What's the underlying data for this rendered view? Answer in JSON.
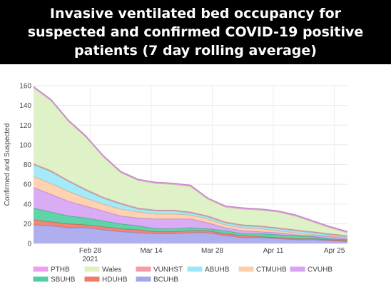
{
  "title": "Invasive ventilated bed occupancy for suspected and confirmed COVID-19 positive patients (7 day rolling average)",
  "chart_data": {
    "type": "area",
    "ylabel": "Confirmed and Suspected",
    "xlabel": "",
    "ylim": [
      0,
      160
    ],
    "y_ticks": [
      0,
      20,
      40,
      60,
      80,
      100,
      120,
      140,
      160
    ],
    "grid": true,
    "stacked": true,
    "legend_position": "bottom",
    "x": [
      "2021-02-15",
      "2021-02-19",
      "2021-02-23",
      "2021-02-27",
      "2021-03-03",
      "2021-03-07",
      "2021-03-11",
      "2021-03-15",
      "2021-03-19",
      "2021-03-23",
      "2021-03-27",
      "2021-03-31",
      "2021-04-04",
      "2021-04-08",
      "2021-04-12",
      "2021-04-16",
      "2021-04-20",
      "2021-04-24",
      "2021-04-28"
    ],
    "x_ticks": [
      {
        "date": "2021-02-28",
        "label": "Feb 28",
        "sublabel": "2021"
      },
      {
        "date": "2021-03-14",
        "label": "Mar 14",
        "sublabel": ""
      },
      {
        "date": "2021-03-28",
        "label": "Mar 28",
        "sublabel": ""
      },
      {
        "date": "2021-04-11",
        "label": "Apr 11",
        "sublabel": ""
      },
      {
        "date": "2021-04-25",
        "label": "Apr 25",
        "sublabel": ""
      }
    ],
    "series_cumulative": [
      {
        "name": "BCUHB",
        "color": "#a6a6ee",
        "values": [
          19,
          18,
          16,
          16,
          14,
          12,
          11,
          10,
          10,
          11,
          11,
          8,
          6,
          6,
          5,
          4,
          4,
          3,
          2
        ]
      },
      {
        "name": "HDUHB",
        "color": "#f07a6a",
        "values": [
          24,
          22,
          20,
          19,
          17,
          15,
          14,
          12,
          12,
          13,
          13,
          10,
          8,
          7,
          6,
          5,
          5,
          4,
          3
        ]
      },
      {
        "name": "SBUHB",
        "color": "#4fcfa0",
        "values": [
          36,
          32,
          28,
          26,
          23,
          20,
          18,
          15,
          15,
          16,
          15,
          13,
          10,
          10,
          9,
          8,
          7,
          5,
          4
        ]
      },
      {
        "name": "CVUHB",
        "color": "#d7a3f5",
        "values": [
          57,
          50,
          43,
          38,
          33,
          28,
          26,
          25,
          25,
          25,
          21,
          16,
          13,
          12,
          11,
          9,
          8,
          7,
          5
        ]
      },
      {
        "name": "CTMUHB",
        "color": "#ffcda8",
        "values": [
          68,
          61,
          53,
          46,
          40,
          35,
          32,
          30,
          30,
          29,
          25,
          19,
          16,
          15,
          13,
          11,
          9,
          8,
          6
        ]
      },
      {
        "name": "ABUHB",
        "color": "#9ae8f7",
        "values": [
          80,
          73,
          63,
          54,
          46,
          40,
          35,
          33,
          33,
          31,
          27,
          21,
          18,
          17,
          15,
          13,
          11,
          9,
          7
        ]
      },
      {
        "name": "VUNHST",
        "color": "#f79aa8",
        "values": [
          81,
          74,
          64,
          55,
          47,
          41,
          36,
          34,
          34,
          32,
          28,
          22,
          19,
          18,
          16,
          14,
          12,
          10,
          8
        ]
      },
      {
        "name": "Wales",
        "color": "#dcf0c0",
        "values": [
          158,
          145,
          124,
          108,
          88,
          72,
          64,
          61,
          60,
          58,
          45,
          37,
          35,
          34,
          32,
          28,
          22,
          16,
          11
        ]
      },
      {
        "name": "PTHB",
        "color": "#ef9df0",
        "values": [
          159,
          146,
          125,
          109,
          89,
          73,
          65,
          62,
          61,
          59,
          46,
          38,
          36,
          35,
          33,
          29,
          23,
          17,
          12
        ]
      }
    ],
    "legend_order": [
      "PTHB",
      "Wales",
      "VUNHST",
      "ABUHB",
      "CTMUHB",
      "CVUHB",
      "SBUHB",
      "HDUHB",
      "BCUHB"
    ]
  }
}
